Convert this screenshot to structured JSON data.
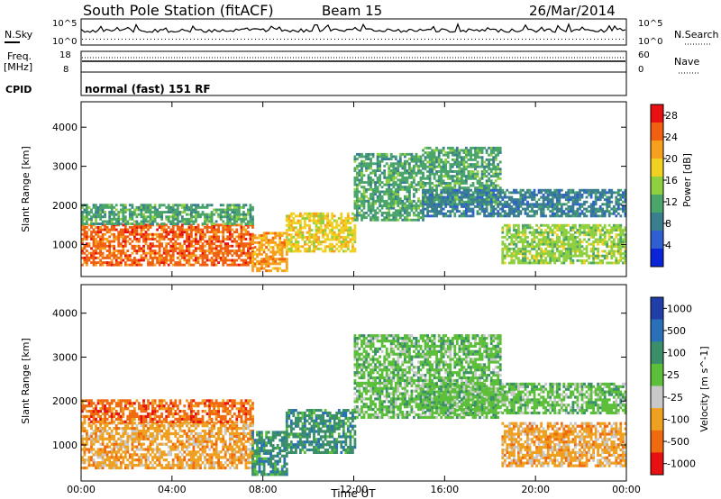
{
  "header": {
    "title": "South Pole Station (fitACF)",
    "beam": "Beam 15",
    "date": "26/Mar/2014"
  },
  "noise_panel": {
    "left_label": "N.Sky",
    "right_label": "N.Search",
    "ticks_left": [
      "10^5",
      "10^0"
    ],
    "ticks_right": [
      "10^5",
      "10^0"
    ]
  },
  "freq_panel": {
    "left_label_1": "Freq.",
    "left_label_2": "[MHz]",
    "right_label": "Nave",
    "ticks_left": [
      "18",
      "8"
    ],
    "ticks_right": [
      "60",
      "0"
    ]
  },
  "cpid": {
    "label": "CPID",
    "value": "normal (fast) 151 RF"
  },
  "chart_data": [
    {
      "type": "heatmap",
      "title": "Power",
      "xlabel": "Time UT",
      "ylabel": "Slant Range [km]",
      "x_ticks": [
        "00:00",
        "04:00",
        "08:00",
        "12:00",
        "16:00",
        "20:00",
        "00:00"
      ],
      "xlim_hours": [
        0,
        24
      ],
      "y_ticks": [
        "1000",
        "2000",
        "3000",
        "4000"
      ],
      "ylim": [
        180,
        4650
      ],
      "colorbar": {
        "label": "Power [dB]",
        "ticks": [
          "4",
          "8",
          "12",
          "16",
          "20",
          "24",
          "28"
        ],
        "range": [
          0,
          30
        ],
        "colors": [
          "#0a24d8",
          "#2f5fd0",
          "#3a7f8f",
          "#4aa56a",
          "#8fd040",
          "#f0d020",
          "#f7a020",
          "#f06010",
          "#e81010"
        ]
      },
      "regions": [
        {
          "t0": 0.0,
          "t1": 7.5,
          "r0": 450,
          "r1": 1500,
          "level": 26
        },
        {
          "t0": 0.0,
          "t1": 7.5,
          "r0": 1500,
          "r1": 2000,
          "level": 12
        },
        {
          "t0": 7.5,
          "t1": 9.0,
          "r0": 300,
          "r1": 1300,
          "level": 24
        },
        {
          "t0": 9.0,
          "t1": 12.0,
          "r0": 800,
          "r1": 1800,
          "level": 18
        },
        {
          "t0": 12.0,
          "t1": 15.0,
          "r0": 1600,
          "r1": 3300,
          "level": 13
        },
        {
          "t0": 15.0,
          "t1": 18.5,
          "r0": 2000,
          "r1": 3500,
          "level": 10
        },
        {
          "t0": 15.0,
          "t1": 24.0,
          "r0": 1700,
          "r1": 2400,
          "level": 9
        },
        {
          "t0": 18.5,
          "t1": 24.0,
          "r0": 500,
          "r1": 1500,
          "level": 14
        }
      ]
    },
    {
      "type": "heatmap",
      "title": "Velocity",
      "xlabel": "Time UT",
      "ylabel": "Slant Range [km]",
      "x_ticks": [
        "00:00",
        "04:00",
        "08:00",
        "12:00",
        "16:00",
        "20:00",
        "00:00"
      ],
      "xlim_hours": [
        0,
        24
      ],
      "y_ticks": [
        "1000",
        "2000",
        "3000",
        "4000"
      ],
      "ylim": [
        180,
        4650
      ],
      "colorbar": {
        "label": "Velocity [m s^-1]",
        "ticks": [
          "1000",
          "500",
          "100",
          "25",
          "-25",
          "-100",
          "-500",
          "-1000"
        ],
        "colors": [
          "#1f3ea8",
          "#2a70b8",
          "#3a8f6a",
          "#5cbf3a",
          "#c8c8c8",
          "#f0a020",
          "#f06a10",
          "#e81010"
        ]
      },
      "regions": [
        {
          "t0": 0.0,
          "t1": 7.5,
          "r0": 450,
          "r1": 1500,
          "level": "-100"
        },
        {
          "t0": 0.0,
          "t1": 7.5,
          "r0": 1500,
          "r1": 2000,
          "level": "-500"
        },
        {
          "t0": 7.5,
          "t1": 9.0,
          "r0": 300,
          "r1": 1300,
          "level": "100"
        },
        {
          "t0": 9.0,
          "t1": 12.0,
          "r0": 800,
          "r1": 1800,
          "level": "100"
        },
        {
          "t0": 12.0,
          "t1": 18.5,
          "r0": 1600,
          "r1": 3500,
          "level": "25"
        },
        {
          "t0": 15.0,
          "t1": 24.0,
          "r0": 1700,
          "r1": 2400,
          "level": "25"
        },
        {
          "t0": 18.5,
          "t1": 24.0,
          "r0": 500,
          "r1": 1500,
          "level": "-100"
        }
      ]
    }
  ]
}
